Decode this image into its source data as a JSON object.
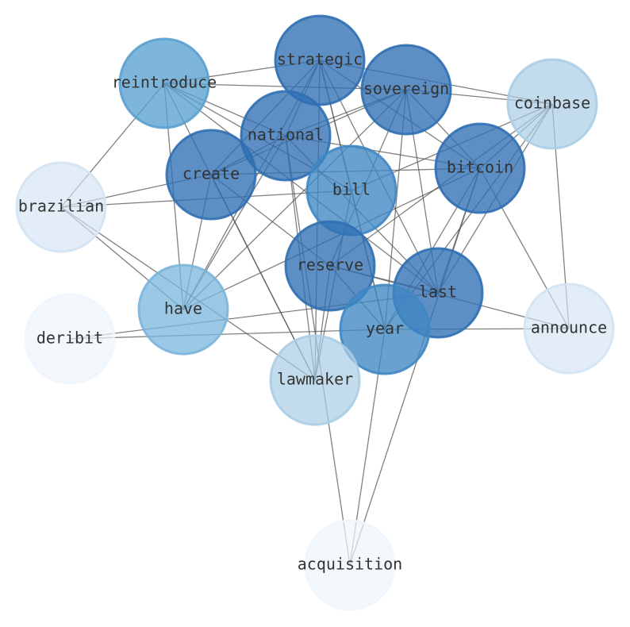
{
  "nodes": [
    {
      "label": "strategic"
    },
    {
      "label": "sovereign"
    },
    {
      "label": "reintroduce"
    },
    {
      "label": "coinbase"
    },
    {
      "label": "national"
    },
    {
      "label": "bitcoin"
    },
    {
      "label": "create"
    },
    {
      "label": "bill"
    },
    {
      "label": "brazilian"
    },
    {
      "label": "reserve"
    },
    {
      "label": "last"
    },
    {
      "label": "have"
    },
    {
      "label": "deribit"
    },
    {
      "label": "year"
    },
    {
      "label": "announce"
    },
    {
      "label": "lawmaker"
    },
    {
      "label": "acquisition"
    }
  ]
}
